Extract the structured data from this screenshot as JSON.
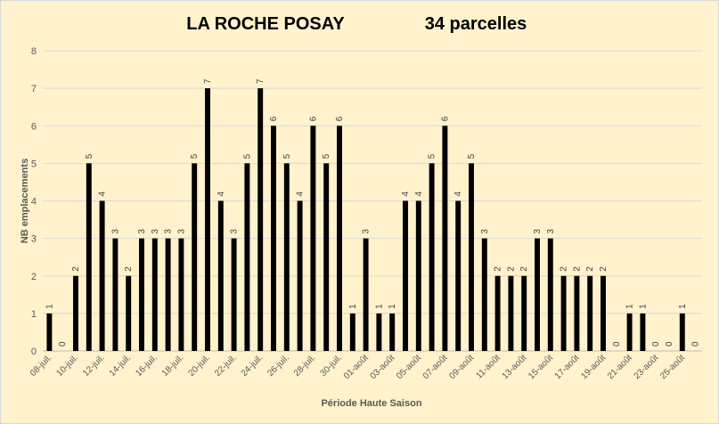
{
  "chart_data": {
    "type": "bar",
    "title": "LA ROCHE POSAY",
    "subtitle": "34 parcelles",
    "xlabel": "Période Haute Saison",
    "ylabel": "NB emplacements",
    "ylim": [
      0,
      8
    ],
    "yticks": [
      0,
      1,
      2,
      3,
      4,
      5,
      6,
      7,
      8
    ],
    "grid": "horizontal",
    "legend": "none",
    "categories": [
      "08-juil.",
      "09-juil.",
      "10-juil.",
      "11-juil.",
      "12-juil.",
      "13-juil.",
      "14-juil.",
      "15-juil.",
      "16-juil.",
      "17-juil.",
      "18-juil.",
      "19-juil.",
      "20-juil.",
      "21-juil.",
      "22-juil.",
      "23-juil.",
      "24-juil.",
      "25-juil.",
      "26-juil.",
      "27-juil.",
      "28-juil.",
      "29-juil.",
      "30-juil.",
      "31-juil.",
      "01-août",
      "02-août",
      "03-août",
      "04-août",
      "05-août",
      "06-août",
      "07-août",
      "08-août",
      "09-août",
      "10-août",
      "11-août",
      "12-août",
      "13-août",
      "14-août",
      "15-août",
      "16-août",
      "17-août",
      "18-août",
      "19-août",
      "20-août",
      "21-août",
      "22-août",
      "23-août",
      "24-août",
      "25-août",
      "26-août"
    ],
    "tick_labels_shown": [
      "08-juil.",
      "10-juil.",
      "12-juil.",
      "14-juil.",
      "16-juil.",
      "18-juil.",
      "20-juil.",
      "22-juil.",
      "24-juil.",
      "26-juil.",
      "28-juil.",
      "30-juil.",
      "01-août",
      "03-août",
      "05-août",
      "07-août",
      "09-août",
      "11-août",
      "13-août",
      "15-août",
      "17-août",
      "19-août",
      "21-août",
      "23-août",
      "25-août"
    ],
    "values": [
      1,
      0,
      2,
      5,
      4,
      3,
      2,
      3,
      3,
      3,
      3,
      5,
      7,
      4,
      3,
      5,
      7,
      6,
      5,
      4,
      6,
      5,
      6,
      1,
      3,
      1,
      1,
      4,
      4,
      5,
      6,
      4,
      5,
      3,
      2,
      2,
      2,
      3,
      3,
      2,
      2,
      2,
      2,
      0,
      1,
      1,
      0,
      0,
      1,
      0
    ],
    "colors": {
      "bar": "#000000",
      "background": "#fff2cc",
      "grid": "#d9d9d9",
      "axis": "#bfbfbf"
    }
  }
}
